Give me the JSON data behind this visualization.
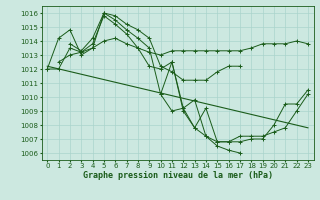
{
  "bg_color": "#cce8e0",
  "grid_color": "#aad4cc",
  "line_color": "#1a5c1a",
  "title": "Graphe pression niveau de la mer (hPa)",
  "ylim": [
    1005.5,
    1016.5
  ],
  "xlim": [
    -0.5,
    23.5
  ],
  "yticks": [
    1006,
    1007,
    1008,
    1009,
    1010,
    1011,
    1012,
    1013,
    1014,
    1015,
    1016
  ],
  "xticks": [
    0,
    1,
    2,
    3,
    4,
    5,
    6,
    7,
    8,
    9,
    10,
    11,
    12,
    13,
    14,
    15,
    16,
    17,
    18,
    19,
    20,
    21,
    22,
    23
  ],
  "series": [
    [
      1012.0,
      1014.2,
      1014.8,
      1013.0,
      1013.5,
      1016.0,
      1015.5,
      1014.8,
      1014.2,
      1013.5,
      1010.2,
      1012.5,
      1009.0,
      1007.8,
      1007.2,
      1006.5,
      1006.2,
      1006.0,
      null,
      null,
      null,
      null,
      null,
      null
    ],
    [
      null,
      1012.5,
      1013.0,
      1013.2,
      1013.5,
      1014.0,
      1014.2,
      1013.8,
      1013.5,
      1013.2,
      1013.0,
      1013.3,
      1013.3,
      1013.3,
      1013.3,
      1013.3,
      1013.3,
      1013.3,
      1013.5,
      1013.8,
      1013.8,
      1013.8,
      1014.0,
      1013.8
    ],
    [
      null,
      null,
      1013.8,
      1013.3,
      1014.2,
      1016.0,
      1015.8,
      1015.2,
      1014.8,
      1014.2,
      1012.2,
      1011.8,
      1011.2,
      1011.2,
      1011.2,
      1011.8,
      1012.2,
      1012.2,
      null,
      null,
      null,
      null,
      null,
      null
    ],
    [
      1012.0,
      1012.0,
      1013.5,
      1013.2,
      1013.8,
      1015.8,
      1015.2,
      1014.5,
      1013.5,
      1012.2,
      1012.0,
      1012.5,
      1009.2,
      1007.8,
      1009.2,
      1006.8,
      1006.8,
      1006.8,
      1007.0,
      1007.0,
      1008.0,
      1009.5,
      1009.5,
      1010.5
    ],
    [
      null,
      null,
      null,
      null,
      null,
      null,
      null,
      null,
      null,
      null,
      1010.2,
      1009.0,
      1009.2,
      1009.8,
      1007.2,
      1006.8,
      1006.8,
      1007.2,
      1007.2,
      1007.2,
      1007.5,
      1007.8,
      1009.0,
      1010.2
    ]
  ],
  "trend_x": [
    0,
    23
  ],
  "trend_y": [
    1012.2,
    1007.8
  ],
  "figsize": [
    3.2,
    2.0
  ],
  "dpi": 100,
  "lw": 0.7,
  "ms": 2.5,
  "title_fontsize": 6,
  "tick_fontsize": 5,
  "xlabel_pad": 1
}
